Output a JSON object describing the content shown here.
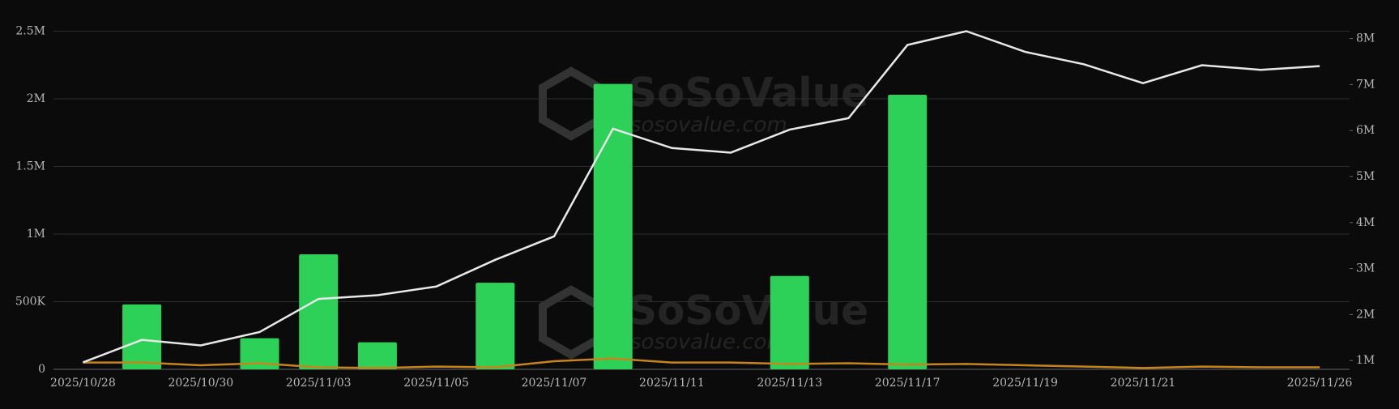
{
  "chart_data": {
    "type": "bar",
    "watermark": "SoSoValue",
    "watermark_url": "sosovalue.com",
    "categories": [
      "2025/10/28",
      null,
      "2025/10/30",
      null,
      "2025/11/03",
      null,
      "2025/11/05",
      null,
      "2025/11/07",
      null,
      "2025/11/11",
      null,
      "2025/11/13",
      null,
      "2025/11/17",
      null,
      "2025/11/19",
      null,
      "2025/11/21",
      null,
      null,
      "2025/11/26"
    ],
    "ylim": [
      0,
      2500000
    ],
    "yticks": [
      0,
      {
        "value": 500000,
        "label": "500K"
      },
      {
        "value": 1000000,
        "label": "1M"
      },
      {
        "value": 1500000,
        "label": "1.5M"
      },
      {
        "value": 2000000,
        "label": "2M"
      },
      {
        "value": 2500000,
        "label": "2.5M"
      }
    ],
    "y2lim": [
      810000,
      8160000
    ],
    "y2ticks": [
      {
        "value": 1000000,
        "label": "1M"
      },
      {
        "value": 2000000,
        "label": "2M"
      },
      {
        "value": 3000000,
        "label": "3M"
      },
      {
        "value": 4000000,
        "label": "4M"
      },
      {
        "value": 5000000,
        "label": "5M"
      },
      {
        "value": 6000000,
        "label": "6M"
      },
      {
        "value": 7000000,
        "label": "7M"
      },
      {
        "value": 8000000,
        "label": "8M"
      }
    ],
    "grid": true,
    "series": [
      {
        "type": "bar",
        "color": "#2ed158",
        "values": [
          0,
          480000,
          0,
          230000,
          850000,
          200000,
          0,
          640000,
          0,
          2110000,
          0,
          0,
          690000,
          0,
          2030000,
          0,
          0,
          0,
          0,
          0,
          0,
          0
        ]
      },
      {
        "type": "line",
        "color": "#c8841c",
        "values": [
          50000,
          50000,
          30000,
          45000,
          15000,
          10000,
          20000,
          15000,
          60000,
          80000,
          50000,
          50000,
          40000,
          45000,
          35000,
          40000,
          30000,
          20000,
          10000,
          20000,
          15000,
          15000
        ]
      },
      {
        "type": "line",
        "color": "#e8e8e8",
        "axis": "y2",
        "values": [
          960000,
          1450000,
          1330000,
          1620000,
          2340000,
          2420000,
          2610000,
          3190000,
          3700000,
          6040000,
          5620000,
          5520000,
          6020000,
          6270000,
          7860000,
          8160000,
          7710000,
          7440000,
          7030000,
          7420000,
          7320000,
          7400000
        ]
      }
    ]
  }
}
